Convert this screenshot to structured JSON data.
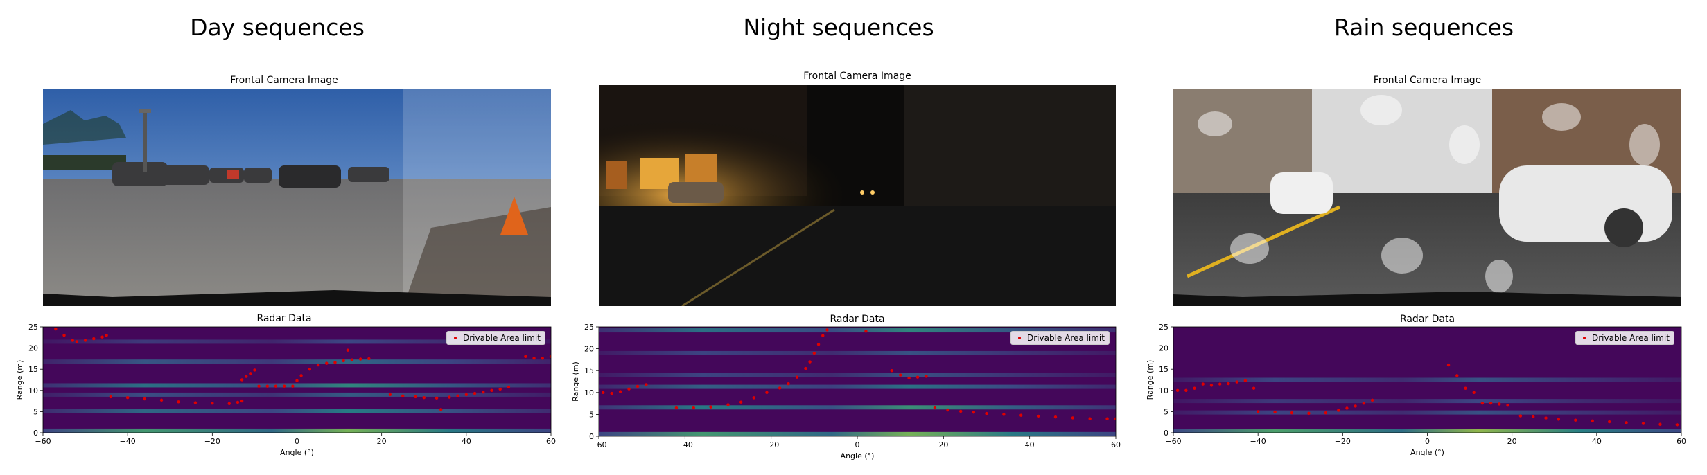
{
  "panels": [
    {
      "title": "Day sequences",
      "camera_title": "Frontal Camera Image",
      "radar_title": "Radar Data"
    },
    {
      "title": "Night sequences",
      "camera_title": "Frontal Camera Image",
      "radar_title": "Radar Data"
    },
    {
      "title": "Rain sequences",
      "camera_title": "Frontal Camera Image",
      "radar_title": "Radar Data"
    }
  ],
  "chart_data": [
    {
      "type": "heatmap",
      "title": "Radar Data",
      "xlabel": "Angle (°)",
      "ylabel": "Range (m)",
      "xlim": [
        -60,
        60
      ],
      "ylim": [
        0,
        25
      ],
      "xticks": [
        "−60",
        "−40",
        "−20",
        "0",
        "20",
        "40",
        "60"
      ],
      "yticks": [
        "0",
        "5",
        "10",
        "15",
        "20",
        "25"
      ],
      "legend": {
        "label": "Drivable Area limit",
        "placement": "top-right",
        "color": "#e00000"
      },
      "series": [
        {
          "name": "Drivable Area limit",
          "points": [
            [
              -57,
              24.5
            ],
            [
              -55,
              23
            ],
            [
              -53,
              21.8
            ],
            [
              -52,
              21.5
            ],
            [
              -50,
              21.8
            ],
            [
              -48,
              22.2
            ],
            [
              -46,
              22.6
            ],
            [
              -45,
              23
            ],
            [
              -44,
              8.5
            ],
            [
              -40,
              8.3
            ],
            [
              -36,
              8
            ],
            [
              -32,
              7.7
            ],
            [
              -28,
              7.3
            ],
            [
              -24,
              7.1
            ],
            [
              -20,
              7
            ],
            [
              -16,
              6.9
            ],
            [
              -14,
              7.2
            ],
            [
              -13,
              7.5
            ],
            [
              -13,
              12.5
            ],
            [
              -12,
              13.3
            ],
            [
              -11,
              14
            ],
            [
              -10,
              14.8
            ],
            [
              -9,
              11
            ],
            [
              -7,
              11
            ],
            [
              -5,
              11
            ],
            [
              -3,
              11
            ],
            [
              -1,
              11
            ],
            [
              0,
              12.3
            ],
            [
              1,
              13.5
            ],
            [
              3,
              15
            ],
            [
              5,
              16
            ],
            [
              7,
              16.4
            ],
            [
              9,
              16.6
            ],
            [
              11,
              17
            ],
            [
              13,
              17.2
            ],
            [
              15,
              17.4
            ],
            [
              17,
              17.5
            ],
            [
              12,
              19.5
            ],
            [
              22,
              9
            ],
            [
              25,
              8.7
            ],
            [
              28,
              8.5
            ],
            [
              30,
              8.3
            ],
            [
              33,
              8.2
            ],
            [
              34,
              5.5
            ],
            [
              36,
              8.4
            ],
            [
              38,
              8.7
            ],
            [
              40,
              9
            ],
            [
              42,
              9.3
            ],
            [
              44,
              9.6
            ],
            [
              46,
              10
            ],
            [
              48,
              10.3
            ],
            [
              50,
              10.8
            ],
            [
              54,
              18
            ],
            [
              56,
              17.6
            ],
            [
              58,
              17.6
            ],
            [
              60,
              18
            ]
          ]
        }
      ],
      "background_bands": [
        {
          "range": 0.5,
          "intensity": 0.8
        },
        {
          "range": 5.2,
          "intensity": 0.5
        },
        {
          "range": 9.0,
          "intensity": 0.35
        },
        {
          "range": 11.2,
          "intensity": 0.55
        },
        {
          "range": 16.8,
          "intensity": 0.4
        },
        {
          "range": 21.5,
          "intensity": 0.25
        }
      ]
    },
    {
      "type": "heatmap",
      "title": "Radar Data",
      "xlabel": "Angle (°)",
      "ylabel": "Range (m)",
      "xlim": [
        -60,
        60
      ],
      "ylim": [
        0,
        25
      ],
      "xticks": [
        "−60",
        "−40",
        "−20",
        "0",
        "20",
        "40",
        "60"
      ],
      "yticks": [
        "0",
        "5",
        "10",
        "15",
        "20",
        "25"
      ],
      "legend": {
        "label": "Drivable Area limit",
        "placement": "top-right",
        "color": "#e00000"
      },
      "series": [
        {
          "name": "Drivable Area limit",
          "points": [
            [
              -59,
              10
            ],
            [
              -57,
              9.8
            ],
            [
              -55,
              10.2
            ],
            [
              -53,
              10.8
            ],
            [
              -51,
              11.4
            ],
            [
              -49,
              11.8
            ],
            [
              -42,
              6.5
            ],
            [
              -38,
              6.5
            ],
            [
              -34,
              6.7
            ],
            [
              -30,
              7.2
            ],
            [
              -27,
              7.8
            ],
            [
              -24,
              8.8
            ],
            [
              -21,
              10
            ],
            [
              -18,
              11
            ],
            [
              -16,
              12
            ],
            [
              -14,
              13.5
            ],
            [
              -12,
              15.5
            ],
            [
              -11,
              17
            ],
            [
              -10,
              19
            ],
            [
              -9,
              21
            ],
            [
              -8,
              23
            ],
            [
              -7,
              24.3
            ],
            [
              2,
              24
            ],
            [
              8,
              15
            ],
            [
              10,
              14
            ],
            [
              12,
              13.3
            ],
            [
              14,
              13.5
            ],
            [
              16,
              13.7
            ],
            [
              18,
              6.5
            ],
            [
              21,
              6
            ],
            [
              24,
              5.7
            ],
            [
              27,
              5.5
            ],
            [
              30,
              5.2
            ],
            [
              34,
              5
            ],
            [
              38,
              4.8
            ],
            [
              42,
              4.6
            ],
            [
              46,
              4.4
            ],
            [
              50,
              4.2
            ],
            [
              54,
              4
            ],
            [
              58,
              4
            ],
            [
              60,
              4
            ]
          ]
        }
      ],
      "background_bands": [
        {
          "range": 0.5,
          "intensity": 0.8
        },
        {
          "range": 6.6,
          "intensity": 0.6
        },
        {
          "range": 11.3,
          "intensity": 0.45
        },
        {
          "range": 14.0,
          "intensity": 0.3
        },
        {
          "range": 19.0,
          "intensity": 0.3
        },
        {
          "range": 24.2,
          "intensity": 0.55
        }
      ]
    },
    {
      "type": "heatmap",
      "title": "Radar Data",
      "xlabel": "Angle (°)",
      "ylabel": "Range (m)",
      "xlim": [
        -60,
        60
      ],
      "ylim": [
        0,
        25
      ],
      "xticks": [
        "−60",
        "−40",
        "−20",
        "0",
        "20",
        "40",
        "60"
      ],
      "yticks": [
        "0",
        "5",
        "10",
        "15",
        "20",
        "25"
      ],
      "legend": {
        "label": "Drivable Area limit",
        "placement": "top-right",
        "color": "#e00000"
      },
      "series": [
        {
          "name": "Drivable Area limit",
          "points": [
            [
              -59,
              10
            ],
            [
              -57,
              10
            ],
            [
              -55,
              10.5
            ],
            [
              -53,
              11.5
            ],
            [
              -51,
              11.2
            ],
            [
              -49,
              11.5
            ],
            [
              -47,
              11.6
            ],
            [
              -45,
              12
            ],
            [
              -43,
              12.3
            ],
            [
              -41,
              10.5
            ],
            [
              -40,
              5
            ],
            [
              -36,
              4.9
            ],
            [
              -32,
              4.7
            ],
            [
              -28,
              4.6
            ],
            [
              -24,
              4.7
            ],
            [
              -21,
              5.3
            ],
            [
              -19,
              5.8
            ],
            [
              -17,
              6.3
            ],
            [
              -15,
              7
            ],
            [
              -13,
              7.7
            ],
            [
              5,
              16
            ],
            [
              7,
              13.5
            ],
            [
              9,
              10.5
            ],
            [
              11,
              9.5
            ],
            [
              13,
              7
            ],
            [
              15,
              7
            ],
            [
              17,
              6.8
            ],
            [
              19,
              6.5
            ],
            [
              22,
              4
            ],
            [
              25,
              3.8
            ],
            [
              28,
              3.5
            ],
            [
              31,
              3.2
            ],
            [
              35,
              3
            ],
            [
              39,
              2.8
            ],
            [
              43,
              2.6
            ],
            [
              47,
              2.4
            ],
            [
              51,
              2.2
            ],
            [
              55,
              2
            ],
            [
              59,
              1.9
            ]
          ]
        }
      ],
      "background_bands": [
        {
          "range": 0.4,
          "intensity": 0.85
        },
        {
          "range": 4.8,
          "intensity": 0.3
        },
        {
          "range": 7.5,
          "intensity": 0.25
        },
        {
          "range": 12.5,
          "intensity": 0.3
        }
      ]
    }
  ]
}
